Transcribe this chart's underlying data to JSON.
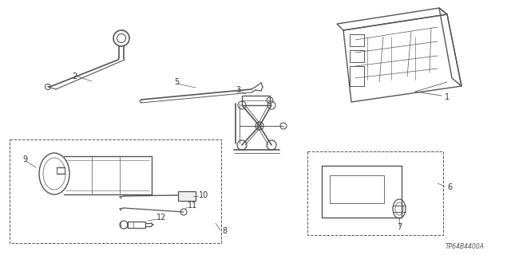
{
  "background_color": "#ffffff",
  "line_color": "#555555",
  "label_color": "#333333",
  "diagram_code": "TP64B4400A",
  "fig_width": 6.4,
  "fig_height": 3.2,
  "dpi": 100
}
